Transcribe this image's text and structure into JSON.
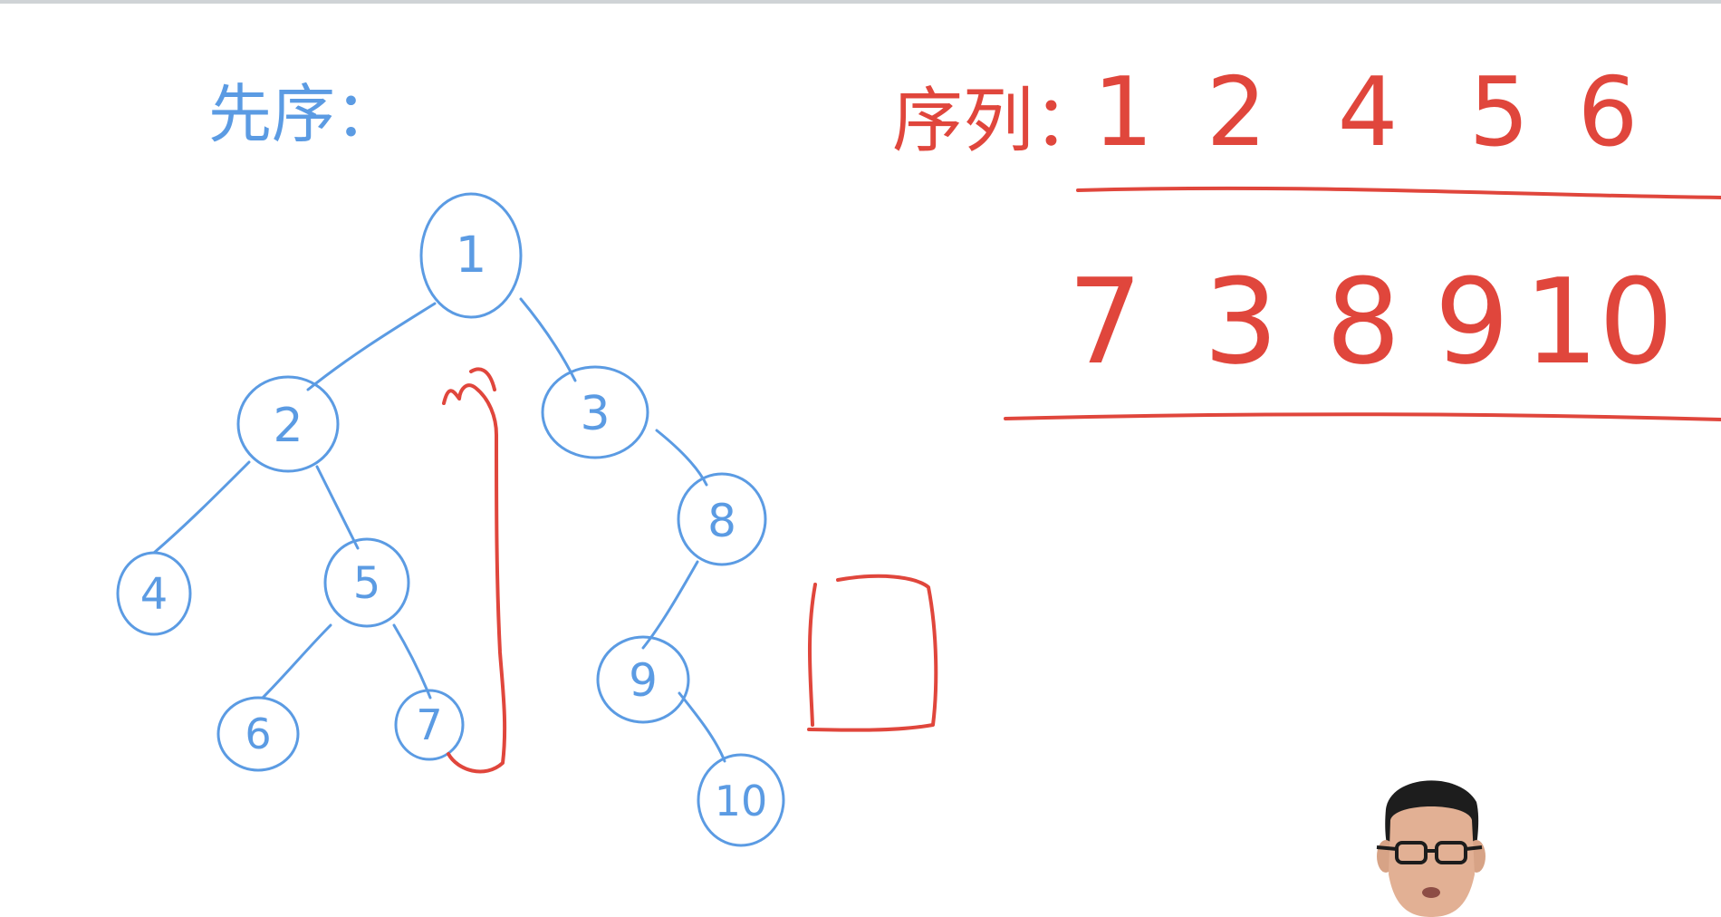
{
  "title_blue": "先序：",
  "title_red": "序列：",
  "nodes": [
    "1",
    "2",
    "3",
    "4",
    "5",
    "6",
    "7",
    "8",
    "9",
    "10"
  ],
  "sequence_row1": [
    "1",
    "2",
    "4",
    "5",
    "6"
  ],
  "sequence_row2": [
    "7",
    "3",
    "8",
    "9",
    "10"
  ],
  "colors": {
    "blue": "#5b9be3",
    "red": "#e0463c",
    "background": "#ffffff"
  }
}
